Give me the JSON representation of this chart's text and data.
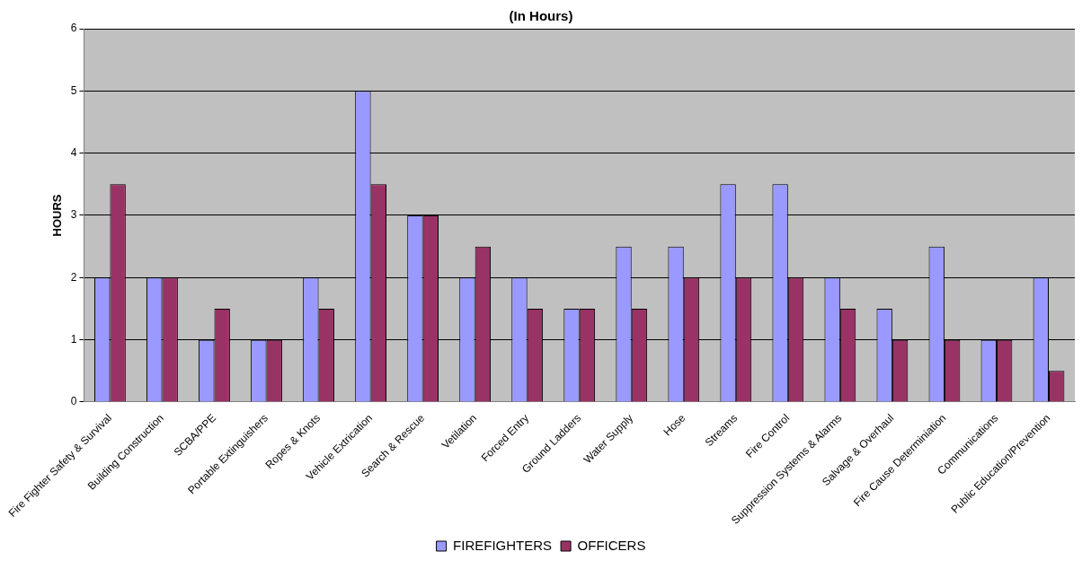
{
  "chart_data": {
    "type": "bar",
    "title": "(In Hours)",
    "ylabel": "HOURS",
    "categories": [
      "Fire Fighter Safety & Survival",
      "Building Construction",
      "SCBA/PPE",
      "Portable Extinguishers",
      "Ropes & Knots",
      "Vehicle Extrication",
      "Search & Rescue",
      "Vetilation",
      "Forced Entry",
      "Ground Ladders",
      "Water Supply",
      "Hose",
      "Streams",
      "Fire Control",
      "Suppression Systems & Alarms",
      "Salvage & Overhaul",
      "Fire Cause Determiniation",
      "Communications",
      "Public Education/Prevention"
    ],
    "series": [
      {
        "name": "FIREFIGHTERS",
        "color": "#9999ff",
        "values": [
          2,
          2,
          1,
          1,
          2,
          5,
          3,
          2,
          2,
          1.5,
          2.5,
          2.5,
          3.5,
          3.5,
          2,
          1.5,
          2.5,
          1,
          2
        ]
      },
      {
        "name": "OFFICERS",
        "color": "#993366",
        "values": [
          3.5,
          2,
          1.5,
          1,
          1.5,
          3.5,
          3,
          2.5,
          1.5,
          1.5,
          1.5,
          2,
          2,
          2,
          1.5,
          1,
          1,
          1,
          0.5
        ]
      }
    ],
    "ylim": [
      0,
      6
    ],
    "yticks": [
      0,
      1,
      2,
      3,
      4,
      5,
      6
    ],
    "grid": "y",
    "legend": "bottom"
  }
}
